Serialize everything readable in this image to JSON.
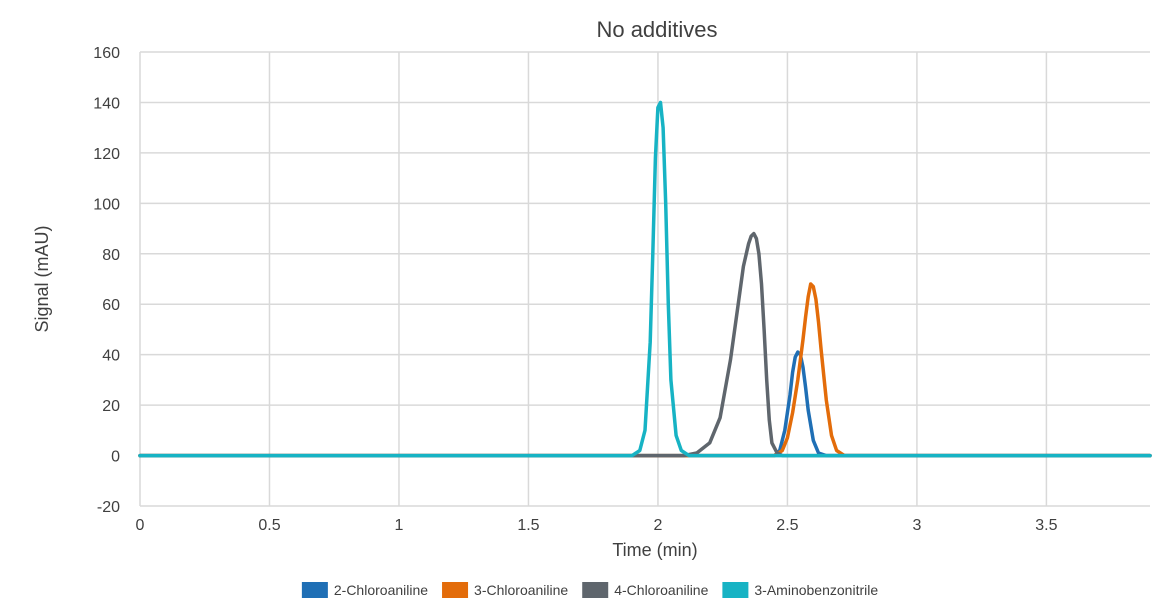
{
  "chart_data": {
    "type": "line",
    "title": "No additives",
    "xlabel": "Time (min)",
    "ylabel": "Signal (mAU)",
    "xlim": [
      0,
      3.9
    ],
    "ylim": [
      -20,
      160
    ],
    "xticks": [
      0,
      0.5,
      1,
      1.5,
      2,
      2.5,
      3,
      3.5
    ],
    "xtick_labels": [
      "0",
      "0.5",
      "1",
      "1.5",
      "2",
      "2.5",
      "3",
      "3.5"
    ],
    "yticks": [
      -20,
      0,
      20,
      40,
      60,
      80,
      100,
      120,
      140,
      160
    ],
    "ytick_labels": [
      "-20",
      "0",
      "20",
      "40",
      "60",
      "80",
      "100",
      "120",
      "140",
      "160"
    ],
    "grid": true,
    "legend_position": "bottom",
    "series": [
      {
        "name": "2-Chloroaniline",
        "color": "#1f6fb5",
        "x": [
          0,
          2.45,
          2.47,
          2.49,
          2.51,
          2.52,
          2.53,
          2.54,
          2.55,
          2.56,
          2.57,
          2.58,
          2.6,
          2.62,
          2.65,
          3.9
        ],
        "y": [
          0,
          0,
          2,
          10,
          24,
          33,
          39,
          41,
          40,
          35,
          27,
          18,
          6,
          1,
          0,
          0
        ]
      },
      {
        "name": "3-Chloroaniline",
        "color": "#e36c0a",
        "x": [
          0,
          2.45,
          2.48,
          2.5,
          2.52,
          2.54,
          2.56,
          2.57,
          2.58,
          2.59,
          2.6,
          2.61,
          2.62,
          2.63,
          2.65,
          2.67,
          2.69,
          2.72,
          3.9
        ],
        "y": [
          0,
          0,
          2,
          7,
          17,
          30,
          46,
          55,
          63,
          68,
          67,
          62,
          53,
          42,
          22,
          8,
          2,
          0,
          0
        ]
      },
      {
        "name": "4-Chloroaniline",
        "color": "#5f666d",
        "x": [
          0,
          2.1,
          2.15,
          2.2,
          2.24,
          2.28,
          2.31,
          2.33,
          2.35,
          2.36,
          2.37,
          2.38,
          2.39,
          2.4,
          2.41,
          2.42,
          2.43,
          2.44,
          2.46,
          2.48,
          3.9
        ],
        "y": [
          0,
          0,
          1,
          5,
          15,
          38,
          60,
          75,
          84,
          87,
          88,
          86,
          80,
          68,
          50,
          30,
          14,
          5,
          1,
          0,
          0
        ]
      },
      {
        "name": "3-Aminobenzonitrile",
        "color": "#17b3c4",
        "x": [
          0,
          1.9,
          1.93,
          1.95,
          1.97,
          1.98,
          1.99,
          2.0,
          2.01,
          2.02,
          2.03,
          2.04,
          2.05,
          2.07,
          2.09,
          2.12,
          3.9
        ],
        "y": [
          0,
          0,
          2,
          10,
          45,
          80,
          118,
          138,
          140,
          130,
          100,
          60,
          30,
          8,
          2,
          0,
          0
        ]
      }
    ]
  }
}
